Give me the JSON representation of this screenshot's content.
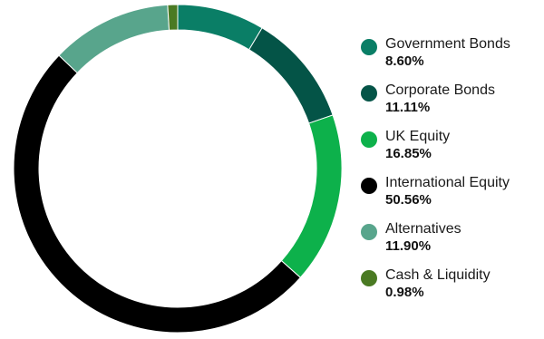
{
  "chart_data": {
    "type": "pie",
    "variant": "donut",
    "legend_position": "right",
    "series": [
      {
        "name": "Government Bonds",
        "value": 8.6,
        "label": "8.60%",
        "color": "#0a7e66"
      },
      {
        "name": "Corporate Bonds",
        "value": 11.11,
        "label": "11.11%",
        "color": "#045447"
      },
      {
        "name": "UK Equity",
        "value": 16.85,
        "label": "16.85%",
        "color": "#0db14b"
      },
      {
        "name": "International Equity",
        "value": 50.56,
        "label": "50.56%",
        "color": "#000000"
      },
      {
        "name": "Alternatives",
        "value": 11.9,
        "label": "11.90%",
        "color": "#58a58c"
      },
      {
        "name": "Cash & Liquidity",
        "value": 0.98,
        "label": "0.98%",
        "color": "#4a7a23"
      }
    ]
  }
}
